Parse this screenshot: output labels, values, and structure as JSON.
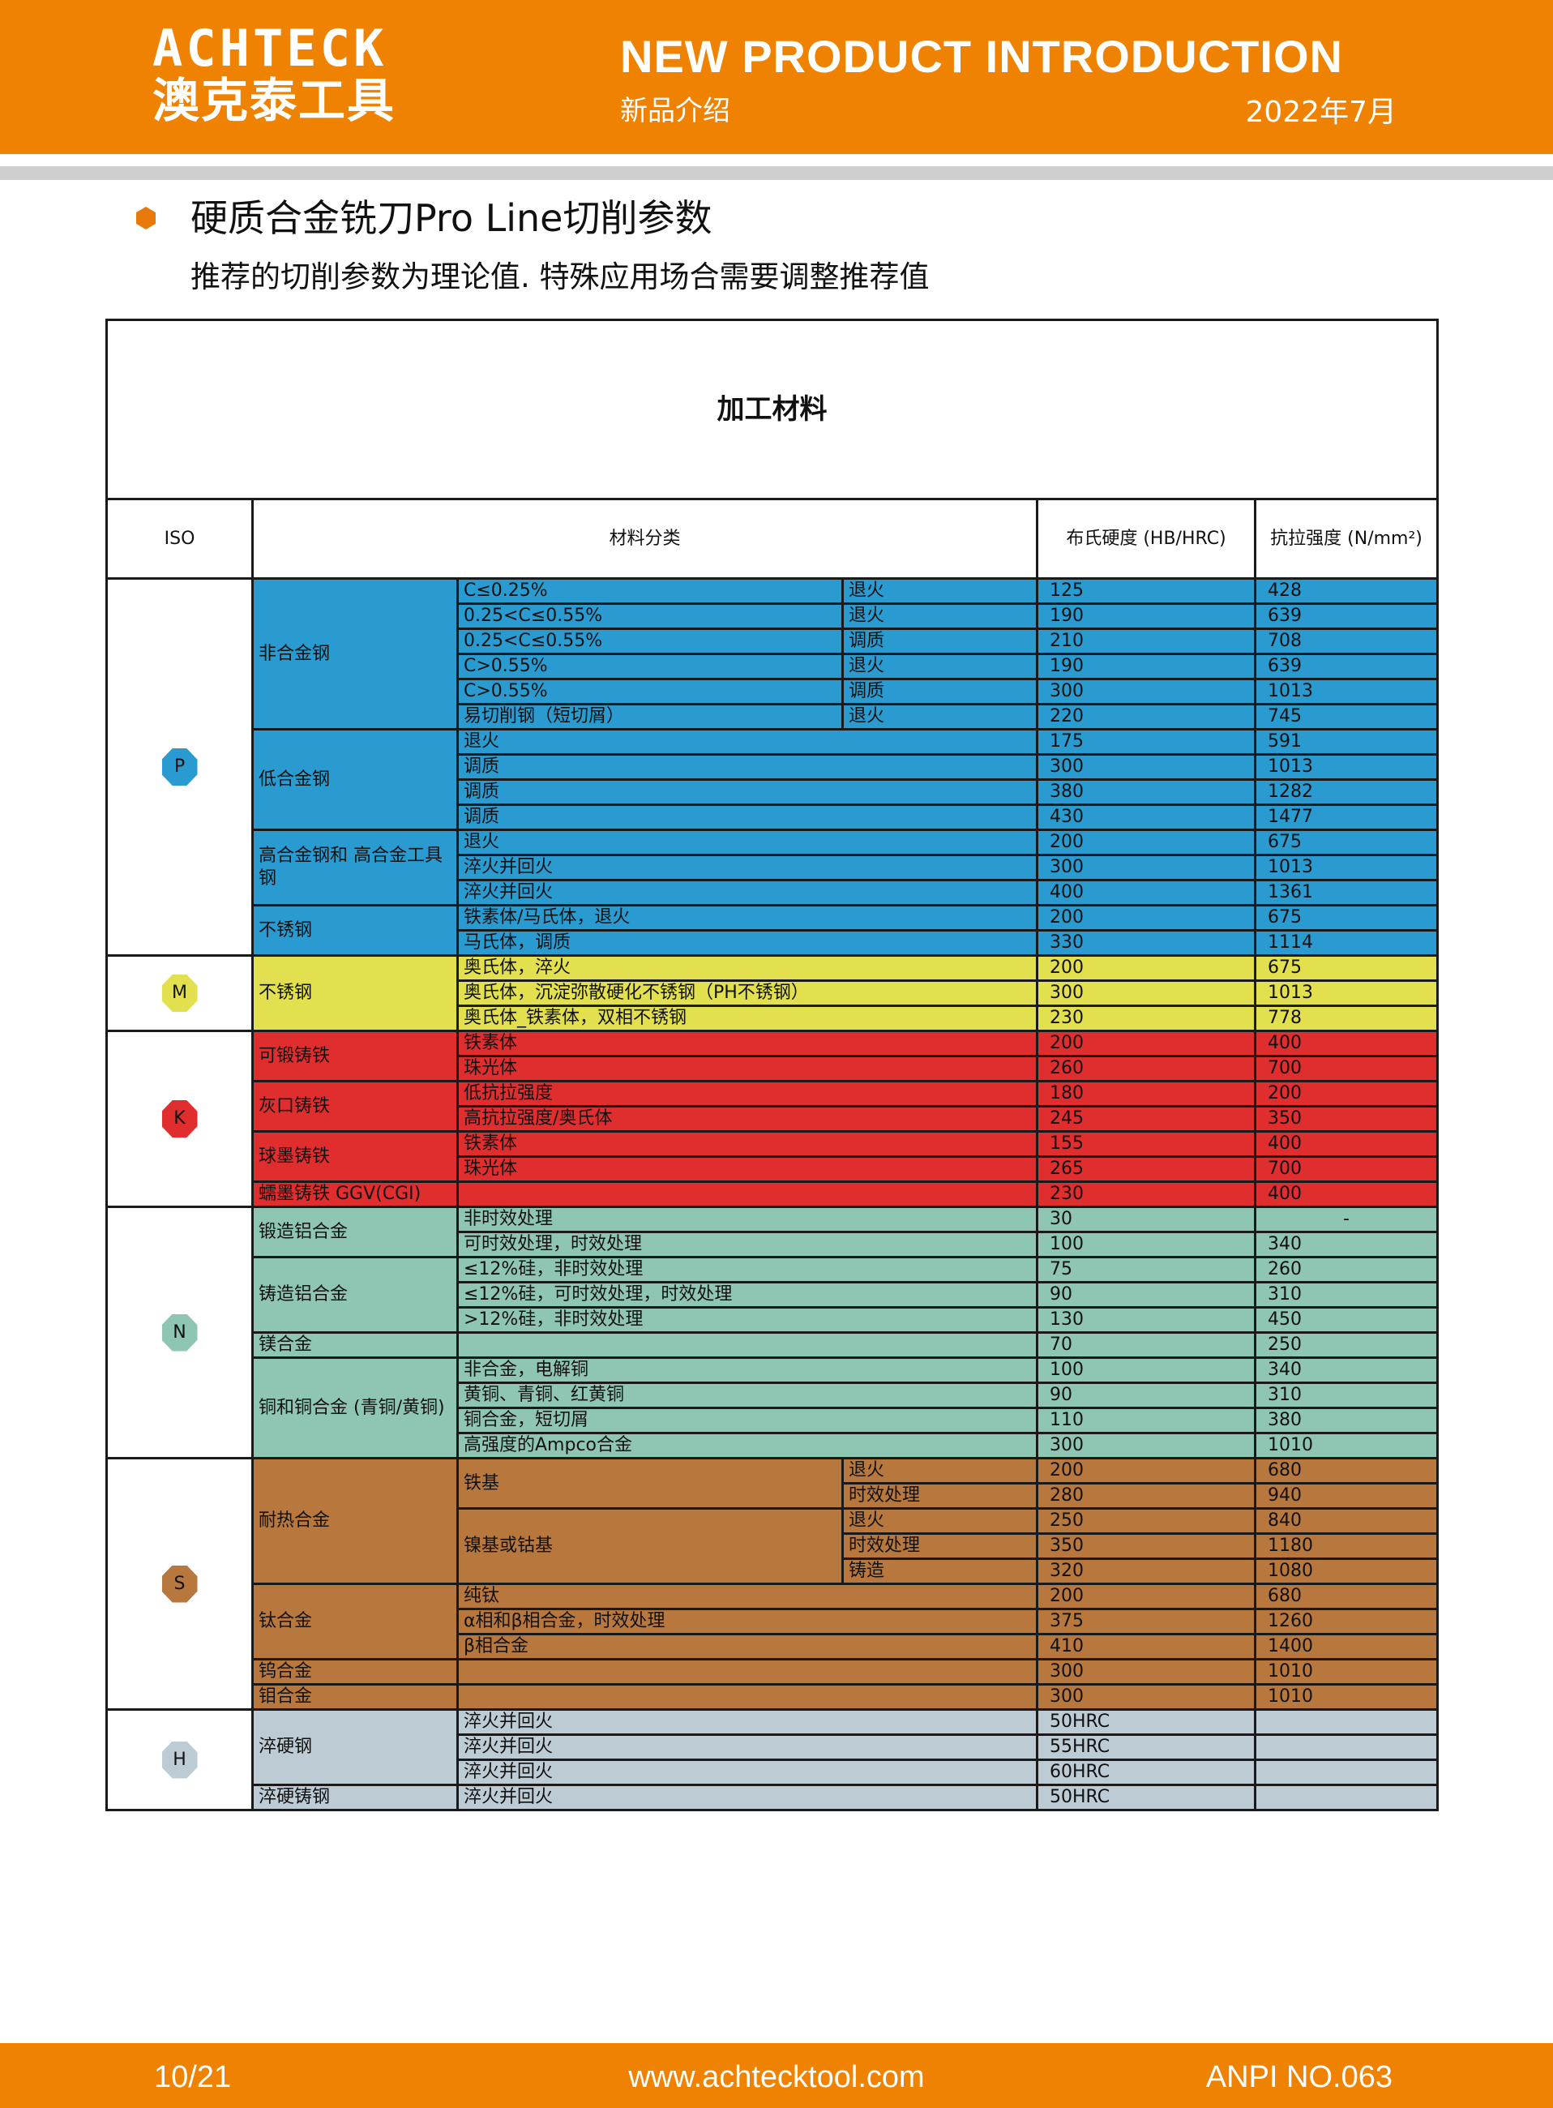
{
  "header": {
    "logo_en": "ACHTECK",
    "logo_cn": "澳克泰工具",
    "title": "NEW PRODUCT INTRODUCTION",
    "title_cn": "新品介绍",
    "date": "2022年7月",
    "brand_color": "#ef8200"
  },
  "page": {
    "title": "硬质合金铣刀Pro Line切削参数",
    "subtitle": "推荐的切削参数为理论值. 特殊应用场合需要调整推荐值"
  },
  "table": {
    "caption": "加工材料",
    "headers": {
      "iso": "ISO",
      "category": "材料分类",
      "hardness": "布氏硬度\n(HB/HRC)",
      "strength": "抗拉强度\n(N/mm²)"
    },
    "groups": [
      {
        "iso": "P",
        "color": "#2a9bd0",
        "categories": [
          {
            "name": "非合金钢",
            "items": [
              {
                "sub": "C≤0.25%",
                "rows": [
                  {
                    "treat": "退火",
                    "hb": "125",
                    "ts": "428"
                  }
                ]
              },
              {
                "sub": "0.25<C≤0.55%",
                "rows": [
                  {
                    "treat": "退火",
                    "hb": "190",
                    "ts": "639"
                  }
                ]
              },
              {
                "sub": "0.25<C≤0.55%",
                "rows": [
                  {
                    "treat": "调质",
                    "hb": "210",
                    "ts": "708"
                  }
                ]
              },
              {
                "sub": "C>0.55%",
                "rows": [
                  {
                    "treat": "退火",
                    "hb": "190",
                    "ts": "639"
                  }
                ]
              },
              {
                "sub": "C>0.55%",
                "rows": [
                  {
                    "treat": "调质",
                    "hb": "300",
                    "ts": "1013"
                  }
                ]
              },
              {
                "sub": "易切削钢（短切屑）",
                "rows": [
                  {
                    "treat": "退火",
                    "hb": "220",
                    "ts": "745"
                  }
                ]
              }
            ]
          },
          {
            "name": "低合金钢",
            "items": [
              {
                "sub": "退火",
                "rows": [
                  {
                    "hb": "175",
                    "ts": "591"
                  }
                ]
              },
              {
                "sub": "调质",
                "rows": [
                  {
                    "hb": "300",
                    "ts": "1013"
                  }
                ]
              },
              {
                "sub": "调质",
                "rows": [
                  {
                    "hb": "380",
                    "ts": "1282"
                  }
                ]
              },
              {
                "sub": "调质",
                "rows": [
                  {
                    "hb": "430",
                    "ts": "1477"
                  }
                ]
              }
            ]
          },
          {
            "name": "高合金钢和\n高合金工具钢",
            "items": [
              {
                "sub": "退火",
                "rows": [
                  {
                    "hb": "200",
                    "ts": "675"
                  }
                ]
              },
              {
                "sub": "淬火并回火",
                "rows": [
                  {
                    "hb": "300",
                    "ts": "1013"
                  }
                ]
              },
              {
                "sub": "淬火并回火",
                "rows": [
                  {
                    "hb": "400",
                    "ts": "1361"
                  }
                ]
              }
            ]
          },
          {
            "name": "不锈钢",
            "items": [
              {
                "sub": "铁素体/马氏体，退火",
                "rows": [
                  {
                    "hb": "200",
                    "ts": "675"
                  }
                ]
              },
              {
                "sub": "马氏体，调质",
                "rows": [
                  {
                    "hb": "330",
                    "ts": "1114"
                  }
                ]
              }
            ]
          }
        ]
      },
      {
        "iso": "M",
        "color": "#e3e04f",
        "categories": [
          {
            "name": "不锈钢",
            "items": [
              {
                "sub": "奥氏体，淬火",
                "rows": [
                  {
                    "hb": "200",
                    "ts": "675"
                  }
                ]
              },
              {
                "sub": "奥氏体，沉淀弥散硬化不锈钢（PH不锈钢）",
                "rows": [
                  {
                    "hb": "300",
                    "ts": "1013"
                  }
                ]
              },
              {
                "sub": "奥氏体_铁素体，双相不锈钢",
                "rows": [
                  {
                    "hb": "230",
                    "ts": "778"
                  }
                ]
              }
            ]
          }
        ]
      },
      {
        "iso": "K",
        "color": "#e02d2d",
        "categories": [
          {
            "name": "可锻铸铁",
            "items": [
              {
                "sub": "铁素体",
                "rows": [
                  {
                    "hb": "200",
                    "ts": "400"
                  }
                ]
              },
              {
                "sub": "珠光体",
                "rows": [
                  {
                    "hb": "260",
                    "ts": "700"
                  }
                ]
              }
            ]
          },
          {
            "name": "灰口铸铁",
            "items": [
              {
                "sub": "低抗拉强度",
                "rows": [
                  {
                    "hb": "180",
                    "ts": "200"
                  }
                ]
              },
              {
                "sub": "高抗拉强度/奥氏体",
                "rows": [
                  {
                    "hb": "245",
                    "ts": "350"
                  }
                ]
              }
            ]
          },
          {
            "name": "球墨铸铁",
            "items": [
              {
                "sub": "铁素体",
                "rows": [
                  {
                    "hb": "155",
                    "ts": "400"
                  }
                ]
              },
              {
                "sub": "珠光体",
                "rows": [
                  {
                    "hb": "265",
                    "ts": "700"
                  }
                ]
              }
            ]
          },
          {
            "name": "蠕墨铸铁 GGV(CGI)",
            "items": [
              {
                "sub": "",
                "rows": [
                  {
                    "hb": "230",
                    "ts": "400"
                  }
                ]
              }
            ]
          }
        ]
      },
      {
        "iso": "N",
        "color": "#8fc6b3",
        "categories": [
          {
            "name": "锻造铝合金",
            "items": [
              {
                "sub": "非时效处理",
                "rows": [
                  {
                    "hb": "30",
                    "ts": "-"
                  }
                ]
              },
              {
                "sub": "可时效处理，时效处理",
                "rows": [
                  {
                    "hb": "100",
                    "ts": "340"
                  }
                ]
              }
            ]
          },
          {
            "name": "铸造铝合金",
            "items": [
              {
                "sub": "≤12%硅，非时效处理",
                "rows": [
                  {
                    "hb": "75",
                    "ts": "260"
                  }
                ]
              },
              {
                "sub": "≤12%硅，可时效处理，时效处理",
                "rows": [
                  {
                    "hb": "90",
                    "ts": "310"
                  }
                ]
              },
              {
                "sub": ">12%硅，非时效处理",
                "rows": [
                  {
                    "hb": "130",
                    "ts": "450"
                  }
                ]
              }
            ]
          },
          {
            "name": "镁合金",
            "items": [
              {
                "sub": "",
                "rows": [
                  {
                    "hb": "70",
                    "ts": "250"
                  }
                ]
              }
            ]
          },
          {
            "name": "铜和铜合金\n(青铜/黄铜)",
            "items": [
              {
                "sub": "非合金，电解铜",
                "rows": [
                  {
                    "hb": "100",
                    "ts": "340"
                  }
                ]
              },
              {
                "sub": "黄铜、青铜、红黄铜",
                "rows": [
                  {
                    "hb": "90",
                    "ts": "310"
                  }
                ]
              },
              {
                "sub": "铜合金，短切屑",
                "rows": [
                  {
                    "hb": "110",
                    "ts": "380"
                  }
                ]
              },
              {
                "sub": "高强度的Ampco合金",
                "rows": [
                  {
                    "hb": "300",
                    "ts": "1010"
                  }
                ]
              }
            ]
          }
        ]
      },
      {
        "iso": "S",
        "color": "#b8773d",
        "categories": [
          {
            "name": "耐热合金",
            "items": [
              {
                "sub": "铁基",
                "rows": [
                  {
                    "treat": "退火",
                    "hb": "200",
                    "ts": "680"
                  },
                  {
                    "treat": "时效处理",
                    "hb": "280",
                    "ts": "940"
                  }
                ]
              },
              {
                "sub": "镍基或钴基",
                "rows": [
                  {
                    "treat": "退火",
                    "hb": "250",
                    "ts": "840"
                  },
                  {
                    "treat": "时效处理",
                    "hb": "350",
                    "ts": "1180"
                  },
                  {
                    "treat": "铸造",
                    "hb": "320",
                    "ts": "1080"
                  }
                ]
              }
            ]
          },
          {
            "name": "钛合金",
            "items": [
              {
                "sub": "纯钛",
                "rows": [
                  {
                    "hb": "200",
                    "ts": "680"
                  }
                ]
              },
              {
                "sub": "α相和β相合金，时效处理",
                "rows": [
                  {
                    "hb": "375",
                    "ts": "1260"
                  }
                ]
              },
              {
                "sub": "β相合金",
                "rows": [
                  {
                    "hb": "410",
                    "ts": "1400"
                  }
                ]
              }
            ]
          },
          {
            "name": "钨合金",
            "items": [
              {
                "sub": "",
                "rows": [
                  {
                    "hb": "300",
                    "ts": "1010"
                  }
                ]
              }
            ]
          },
          {
            "name": "钼合金",
            "items": [
              {
                "sub": "",
                "rows": [
                  {
                    "hb": "300",
                    "ts": "1010"
                  }
                ]
              }
            ]
          }
        ]
      },
      {
        "iso": "H",
        "color": "#bccbd4",
        "categories": [
          {
            "name": "淬硬钢",
            "items": [
              {
                "sub": "淬火并回火",
                "rows": [
                  {
                    "hb": "50HRC",
                    "ts": ""
                  }
                ]
              },
              {
                "sub": "淬火并回火",
                "rows": [
                  {
                    "hb": "55HRC",
                    "ts": ""
                  }
                ]
              },
              {
                "sub": "淬火并回火",
                "rows": [
                  {
                    "hb": "60HRC",
                    "ts": ""
                  }
                ]
              }
            ]
          },
          {
            "name": "淬硬铸钢",
            "items": [
              {
                "sub": "淬火并回火",
                "rows": [
                  {
                    "hb": "50HRC",
                    "ts": ""
                  }
                ]
              }
            ]
          }
        ]
      }
    ]
  },
  "footer": {
    "page": "10/21",
    "url": "www.achtecktool.com",
    "doc_no": "ANPI NO.063"
  }
}
